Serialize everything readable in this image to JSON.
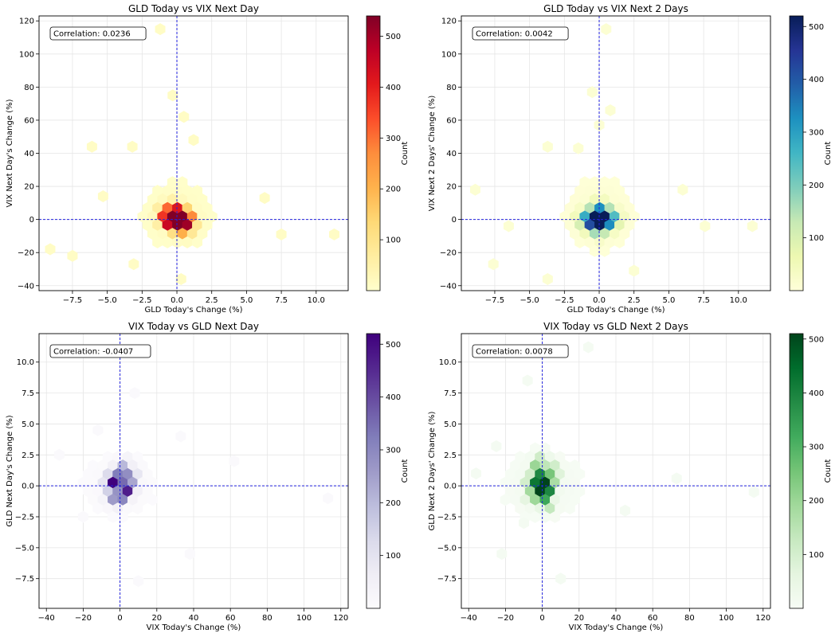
{
  "chart_data": [
    {
      "type": "hexbin",
      "title": "GLD Today vs VIX Next Day",
      "xlabel": "GLD Today's Change (%)",
      "ylabel": "VIX Next Day's Change (%)",
      "xlim": [
        -9.9,
        12.3
      ],
      "ylim": [
        -43,
        123
      ],
      "xticks": [
        -7.5,
        -5.0,
        -2.5,
        0.0,
        2.5,
        5.0,
        7.5,
        10.0
      ],
      "xtick_labels": [
        "−7.5",
        "−5.0",
        "−2.5",
        "0.0",
        "2.5",
        "5.0",
        "7.5",
        "10.0"
      ],
      "yticks": [
        -40,
        -20,
        0,
        20,
        40,
        60,
        80,
        100,
        120
      ],
      "ytick_labels": [
        "−40",
        "−20",
        "0",
        "20",
        "40",
        "60",
        "80",
        "100",
        "120"
      ],
      "correlation_label": "Correlation: 0.0236",
      "reference_lines": {
        "x": 0,
        "y": 0
      },
      "colormap": "YlOrRd",
      "colormap_stops": [
        "#ffffcc",
        "#ffeda0",
        "#fed976",
        "#feb24c",
        "#fd8d3c",
        "#fc4e2a",
        "#e31a1c",
        "#bd0026",
        "#800026"
      ],
      "colorbar": {
        "label": "Count",
        "max": 540,
        "ticks": [
          100,
          200,
          300,
          400,
          500
        ],
        "tick_labels": [
          "100",
          "200",
          "300",
          "400",
          "500"
        ]
      },
      "outliers": [
        [
          -1.2,
          115
        ],
        [
          -0.3,
          75
        ],
        [
          0.5,
          62
        ],
        [
          -6.1,
          44
        ],
        [
          -3.2,
          44
        ],
        [
          6.3,
          13
        ],
        [
          7.5,
          -9
        ],
        [
          11.3,
          -9
        ],
        [
          -9.1,
          -18
        ],
        [
          -7.5,
          -22
        ],
        [
          -3.1,
          -27
        ],
        [
          0.3,
          -36
        ],
        [
          1.2,
          48
        ],
        [
          -5.3,
          14
        ]
      ],
      "cluster": {
        "x_spread": 1.3,
        "y_spread": 9,
        "outer_x": 3.2,
        "outer_y": 26,
        "offset_y": 3
      },
      "hot": [
        [
          0.0,
          0,
          540
        ],
        [
          0.5,
          -2,
          420
        ],
        [
          -0.5,
          -2,
          420
        ],
        [
          0.5,
          3,
          410
        ],
        [
          -0.5,
          3,
          400
        ],
        [
          0.0,
          -5,
          330
        ],
        [
          0.0,
          6,
          300
        ],
        [
          1.0,
          0,
          220
        ],
        [
          -1.0,
          0,
          210
        ],
        [
          1.0,
          -5,
          140
        ],
        [
          -1.0,
          5,
          130
        ],
        [
          0.5,
          -8,
          120
        ],
        [
          -0.5,
          8,
          110
        ]
      ]
    },
    {
      "type": "hexbin",
      "title": "GLD Today vs VIX Next 2 Days",
      "xlabel": "GLD Today's Change (%)",
      "ylabel": "VIX Next 2 Days' Change (%)",
      "xlim": [
        -9.9,
        12.3
      ],
      "ylim": [
        -43,
        123
      ],
      "xticks": [
        -7.5,
        -5.0,
        -2.5,
        0.0,
        2.5,
        5.0,
        7.5,
        10.0
      ],
      "xtick_labels": [
        "−7.5",
        "−5.0",
        "−2.5",
        "0.0",
        "2.5",
        "5.0",
        "7.5",
        "10.0"
      ],
      "yticks": [
        -40,
        -20,
        0,
        20,
        40,
        60,
        80,
        100,
        120
      ],
      "ytick_labels": [
        "−40",
        "−20",
        "0",
        "20",
        "40",
        "60",
        "80",
        "100",
        "120"
      ],
      "correlation_label": "Correlation: 0.0042",
      "reference_lines": {
        "x": 0,
        "y": 0
      },
      "colormap": "YlGnBu",
      "colormap_stops": [
        "#ffffd9",
        "#edf8b1",
        "#c7e9b4",
        "#7fcdbb",
        "#41b6c4",
        "#1d91c0",
        "#225ea8",
        "#253494",
        "#081d58"
      ],
      "colorbar": {
        "label": "Count",
        "max": 520,
        "ticks": [
          100,
          200,
          300,
          400,
          500
        ],
        "tick_labels": [
          "100",
          "200",
          "300",
          "400",
          "500"
        ]
      },
      "outliers": [
        [
          0.5,
          115
        ],
        [
          -0.5,
          77
        ],
        [
          0.8,
          66
        ],
        [
          0.0,
          57
        ],
        [
          -8.9,
          18
        ],
        [
          6.0,
          18
        ],
        [
          -7.6,
          -27
        ],
        [
          -3.7,
          -36
        ],
        [
          2.5,
          -31
        ],
        [
          11.0,
          -4
        ],
        [
          7.6,
          -4
        ],
        [
          -6.5,
          -4
        ],
        [
          -3.7,
          44
        ],
        [
          -1.5,
          43
        ]
      ],
      "cluster": {
        "x_spread": 1.4,
        "y_spread": 10,
        "outer_x": 3.4,
        "outer_y": 28,
        "offset_y": 3
      },
      "hot": [
        [
          0.0,
          0,
          520
        ],
        [
          -0.5,
          0,
          380
        ],
        [
          0.5,
          0,
          330
        ],
        [
          0.0,
          -5,
          300
        ],
        [
          0.0,
          5,
          260
        ],
        [
          -0.8,
          -4,
          220
        ],
        [
          0.8,
          4,
          200
        ],
        [
          -0.8,
          4,
          180
        ],
        [
          0.8,
          -4,
          170
        ],
        [
          1.3,
          0,
          130
        ],
        [
          -1.3,
          0,
          130
        ],
        [
          0.0,
          9,
          110
        ],
        [
          0.0,
          -9,
          100
        ]
      ]
    },
    {
      "type": "hexbin",
      "title": "VIX Today vs GLD Next Day",
      "xlabel": "VIX Today's Change (%)",
      "ylabel": "GLD Next Day's Change (%)",
      "xlim": [
        -44,
        124
      ],
      "ylim": [
        -9.9,
        12.3
      ],
      "xticks": [
        -40,
        -20,
        0,
        20,
        40,
        60,
        80,
        100,
        120
      ],
      "xtick_labels": [
        "−40",
        "−20",
        "0",
        "20",
        "40",
        "60",
        "80",
        "100",
        "120"
      ],
      "yticks": [
        -7.5,
        -5.0,
        -2.5,
        0.0,
        2.5,
        5.0,
        7.5,
        10.0
      ],
      "ytick_labels": [
        "−7.5",
        "−5.0",
        "−2.5",
        "0.0",
        "2.5",
        "5.0",
        "7.5",
        "10.0"
      ],
      "correlation_label": "Correlation: -0.0407",
      "reference_lines": {
        "x": 0,
        "y": 0
      },
      "colormap": "Purples",
      "colormap_stops": [
        "#fcfbfd",
        "#efedf5",
        "#dadaeb",
        "#bcbddc",
        "#9e9ac8",
        "#807dba",
        "#6a51a3",
        "#54278f",
        "#3f007d"
      ],
      "colorbar": {
        "label": "Count",
        "max": 520,
        "ticks": [
          100,
          200,
          300,
          400,
          500
        ],
        "tick_labels": [
          "100",
          "200",
          "300",
          "400",
          "500"
        ]
      },
      "outliers": [
        [
          113,
          -1
        ],
        [
          62,
          2.0
        ],
        [
          8,
          7.5
        ],
        [
          -33,
          2.5
        ],
        [
          -20,
          -2.5
        ],
        [
          38,
          -5.5
        ],
        [
          10,
          -7.7
        ],
        [
          -12,
          4.5
        ],
        [
          33,
          4.0
        ]
      ],
      "cluster": {
        "x_spread": 10,
        "y_spread": 1.3,
        "outer_x": 26,
        "outer_y": 3.2,
        "offset_y": 0
      },
      "hot": [
        [
          -3,
          0.2,
          520
        ],
        [
          3,
          0.6,
          340
        ],
        [
          3,
          -0.5,
          420
        ],
        [
          0,
          1.2,
          300
        ],
        [
          -6,
          0.5,
          200
        ],
        [
          0,
          -1.0,
          250
        ],
        [
          6,
          0.0,
          200
        ],
        [
          -3,
          -1.2,
          160
        ],
        [
          -6,
          -0.7,
          120
        ],
        [
          3,
          1.8,
          100
        ],
        [
          8,
          1.0,
          90
        ]
      ]
    },
    {
      "type": "hexbin",
      "title": "VIX Today vs GLD Next 2 Days",
      "xlabel": "VIX Today's Change (%)",
      "ylabel": "GLD Next 2 Days' Change (%)",
      "xlim": [
        -44,
        124
      ],
      "ylim": [
        -9.9,
        12.3
      ],
      "xticks": [
        -40,
        -20,
        0,
        20,
        40,
        60,
        80,
        100,
        120
      ],
      "xtick_labels": [
        "−40",
        "−20",
        "0",
        "20",
        "40",
        "60",
        "80",
        "100",
        "120"
      ],
      "yticks": [
        -7.5,
        -5.0,
        -2.5,
        0.0,
        2.5,
        5.0,
        7.5,
        10.0
      ],
      "ytick_labels": [
        "−7.5",
        "−5.0",
        "−2.5",
        "0.0",
        "2.5",
        "5.0",
        "7.5",
        "10.0"
      ],
      "correlation_label": "Correlation: 0.0078",
      "reference_lines": {
        "x": 0,
        "y": 0
      },
      "colormap": "Greens",
      "colormap_stops": [
        "#f7fcf5",
        "#e5f5e0",
        "#c7e9c0",
        "#a1d99b",
        "#74c476",
        "#41ab5d",
        "#238b45",
        "#006d2c",
        "#00441b"
      ],
      "colorbar": {
        "label": "Count",
        "max": 510,
        "ticks": [
          100,
          200,
          300,
          400,
          500
        ],
        "tick_labels": [
          "100",
          "200",
          "300",
          "400",
          "500"
        ]
      },
      "outliers": [
        [
          25,
          11.2
        ],
        [
          115,
          -0.5
        ],
        [
          73,
          0.6
        ],
        [
          -36,
          1.0
        ],
        [
          -22,
          -5.5
        ],
        [
          -10,
          -3.0
        ],
        [
          10,
          -7.5
        ],
        [
          -8,
          8.5
        ],
        [
          45,
          -2.0
        ],
        [
          -25,
          3.2
        ]
      ],
      "cluster": {
        "x_spread": 11,
        "y_spread": 1.5,
        "outer_x": 28,
        "outer_y": 3.6,
        "offset_y": 0
      },
      "hot": [
        [
          0,
          0.2,
          510
        ],
        [
          -3,
          -0.3,
          380
        ],
        [
          3,
          -0.4,
          360
        ],
        [
          0,
          1.0,
          330
        ],
        [
          0,
          -0.9,
          320
        ],
        [
          -6,
          0.4,
          250
        ],
        [
          6,
          0.6,
          230
        ],
        [
          -3,
          1.6,
          180
        ],
        [
          3,
          -1.6,
          170
        ],
        [
          -6,
          -1.0,
          140
        ],
        [
          6,
          1.4,
          130
        ],
        [
          0,
          2.2,
          110
        ]
      ]
    }
  ]
}
